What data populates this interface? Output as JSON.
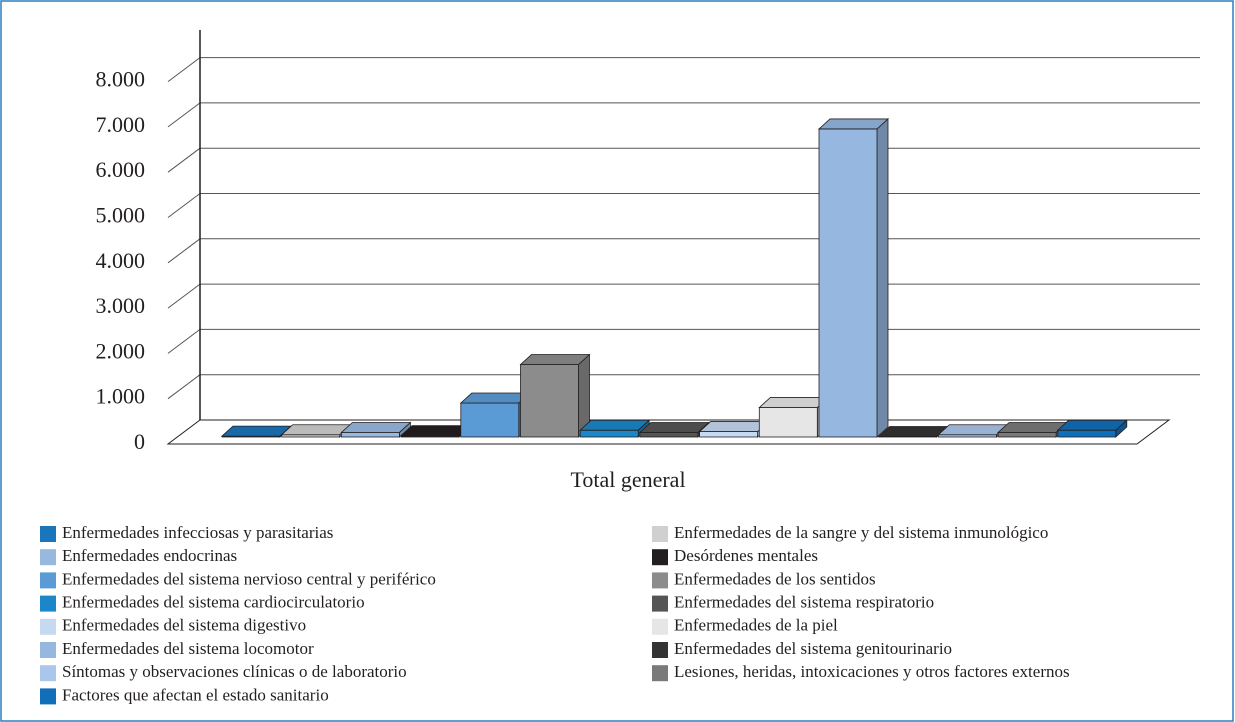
{
  "chart_data": {
    "type": "bar3d",
    "categories": [
      "Total general"
    ],
    "ylim": [
      0,
      8000
    ],
    "yticks": [
      0,
      {
        "value": 1000,
        "label": "1.000"
      },
      {
        "value": 2000,
        "label": "2.000"
      },
      {
        "value": 3000,
        "label": "3.000"
      },
      {
        "value": 4000,
        "label": "4.000"
      },
      {
        "value": 5000,
        "label": "5.000"
      },
      {
        "value": 6000,
        "label": "6.000"
      },
      {
        "value": 7000,
        "label": "7.000"
      },
      {
        "value": 8000,
        "label": "8.000"
      }
    ],
    "grid": true,
    "series": [
      {
        "name": "Enfermedades infecciosas y parasitarias",
        "color": "#1a75bb",
        "values": [
          20
        ]
      },
      {
        "name": "Enfermedades de la sangre y del sistema inmunológico",
        "color": "#d0d0d0",
        "values": [
          50
        ]
      },
      {
        "name": "Enfermedades endocrinas",
        "color": "#97b9e0",
        "values": [
          100
        ]
      },
      {
        "name": "Desórdenes mentales",
        "color": "#231f20",
        "values": [
          30
        ]
      },
      {
        "name": "Enfermedades del sistema nervioso central y periférico",
        "color": "#5b9bd5",
        "values": [
          750
        ]
      },
      {
        "name": "Enfermedades de los sentidos",
        "color": "#8c8c8c",
        "values": [
          1600
        ]
      },
      {
        "name": "Enfermedades del sistema cardiocirculatorio",
        "color": "#1b87c9",
        "values": [
          150
        ]
      },
      {
        "name": "Enfermedades del sistema respiratorio",
        "color": "#555555",
        "values": [
          100
        ]
      },
      {
        "name": "Enfermedades del sistema digestivo",
        "color": "#c6d9f1",
        "values": [
          120
        ]
      },
      {
        "name": "Enfermedades de la piel",
        "color": "#e6e6e6",
        "values": [
          650
        ]
      },
      {
        "name": "Enfermedades del sistema locomotor",
        "color": "#95b7e0",
        "values": [
          6800
        ]
      },
      {
        "name": "Enfermedades del sistema genitourinario",
        "color": "#333333",
        "values": [
          10
        ]
      },
      {
        "name": "Síntomas y observaciones clínicas o de laboratorio",
        "color": "#aac6ea",
        "values": [
          50
        ]
      },
      {
        "name": "Lesiones, heridas, intoxicaciones y otros factores externos",
        "color": "#7a7a7a",
        "values": [
          100
        ]
      },
      {
        "name": "Factores que afectan el estado sanitario",
        "color": "#0f6fb8",
        "values": [
          150
        ]
      }
    ]
  }
}
